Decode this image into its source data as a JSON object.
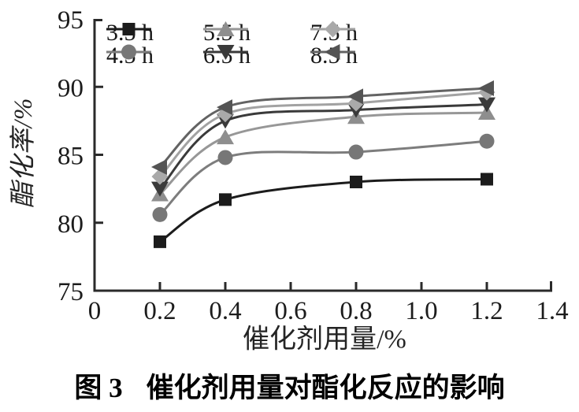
{
  "figure": {
    "caption_prefix": "图 3",
    "caption_title": "催化剂用量对酯化反应的影响"
  },
  "chart_data": {
    "type": "line",
    "title": "",
    "xlabel": "催化剂用量/%",
    "ylabel": "酯化率/%",
    "xlim": [
      0,
      1.4
    ],
    "ylim": [
      75,
      95
    ],
    "xticks": [
      0,
      0.2,
      0.4,
      0.6,
      0.8,
      1.0,
      1.2,
      1.4
    ],
    "xtick_labels": [
      "0",
      "0.2",
      "0.4",
      "0.6",
      "0.8",
      "1.0",
      "1.2",
      "1.4"
    ],
    "yticks": [
      75,
      80,
      85,
      90,
      95
    ],
    "ytick_labels": [
      "75",
      "80",
      "85",
      "90",
      "95"
    ],
    "grid": false,
    "legend_position": "top-left-inside",
    "x": [
      0.2,
      0.4,
      0.8,
      1.2
    ],
    "series": [
      {
        "name": "3.5 h",
        "marker": "square",
        "color": "#1c1c1c",
        "line_color": "#1c1c1c",
        "values": [
          78.6,
          81.7,
          83.0,
          83.2
        ]
      },
      {
        "name": "4.5 h",
        "marker": "circle",
        "color": "#777777",
        "line_color": "#7d7d7d",
        "values": [
          80.6,
          84.8,
          85.2,
          86.0
        ]
      },
      {
        "name": "5.5 h",
        "marker": "triangle-up",
        "color": "#8e8e8e",
        "line_color": "#979797",
        "values": [
          82.1,
          86.3,
          87.8,
          88.1
        ]
      },
      {
        "name": "6.5 h",
        "marker": "triangle-down",
        "color": "#3a3a3a",
        "line_color": "#3a3a3a",
        "values": [
          82.5,
          87.5,
          88.3,
          88.7
        ]
      },
      {
        "name": "7.5 h",
        "marker": "diamond",
        "color": "#a9a9a9",
        "line_color": "#a2a2a2",
        "values": [
          83.4,
          88.0,
          88.8,
          89.6
        ]
      },
      {
        "name": "8.5 h",
        "marker": "triangle-left",
        "color": "#545454",
        "line_color": "#636363",
        "values": [
          84.1,
          88.5,
          89.3,
          89.9
        ]
      }
    ]
  }
}
